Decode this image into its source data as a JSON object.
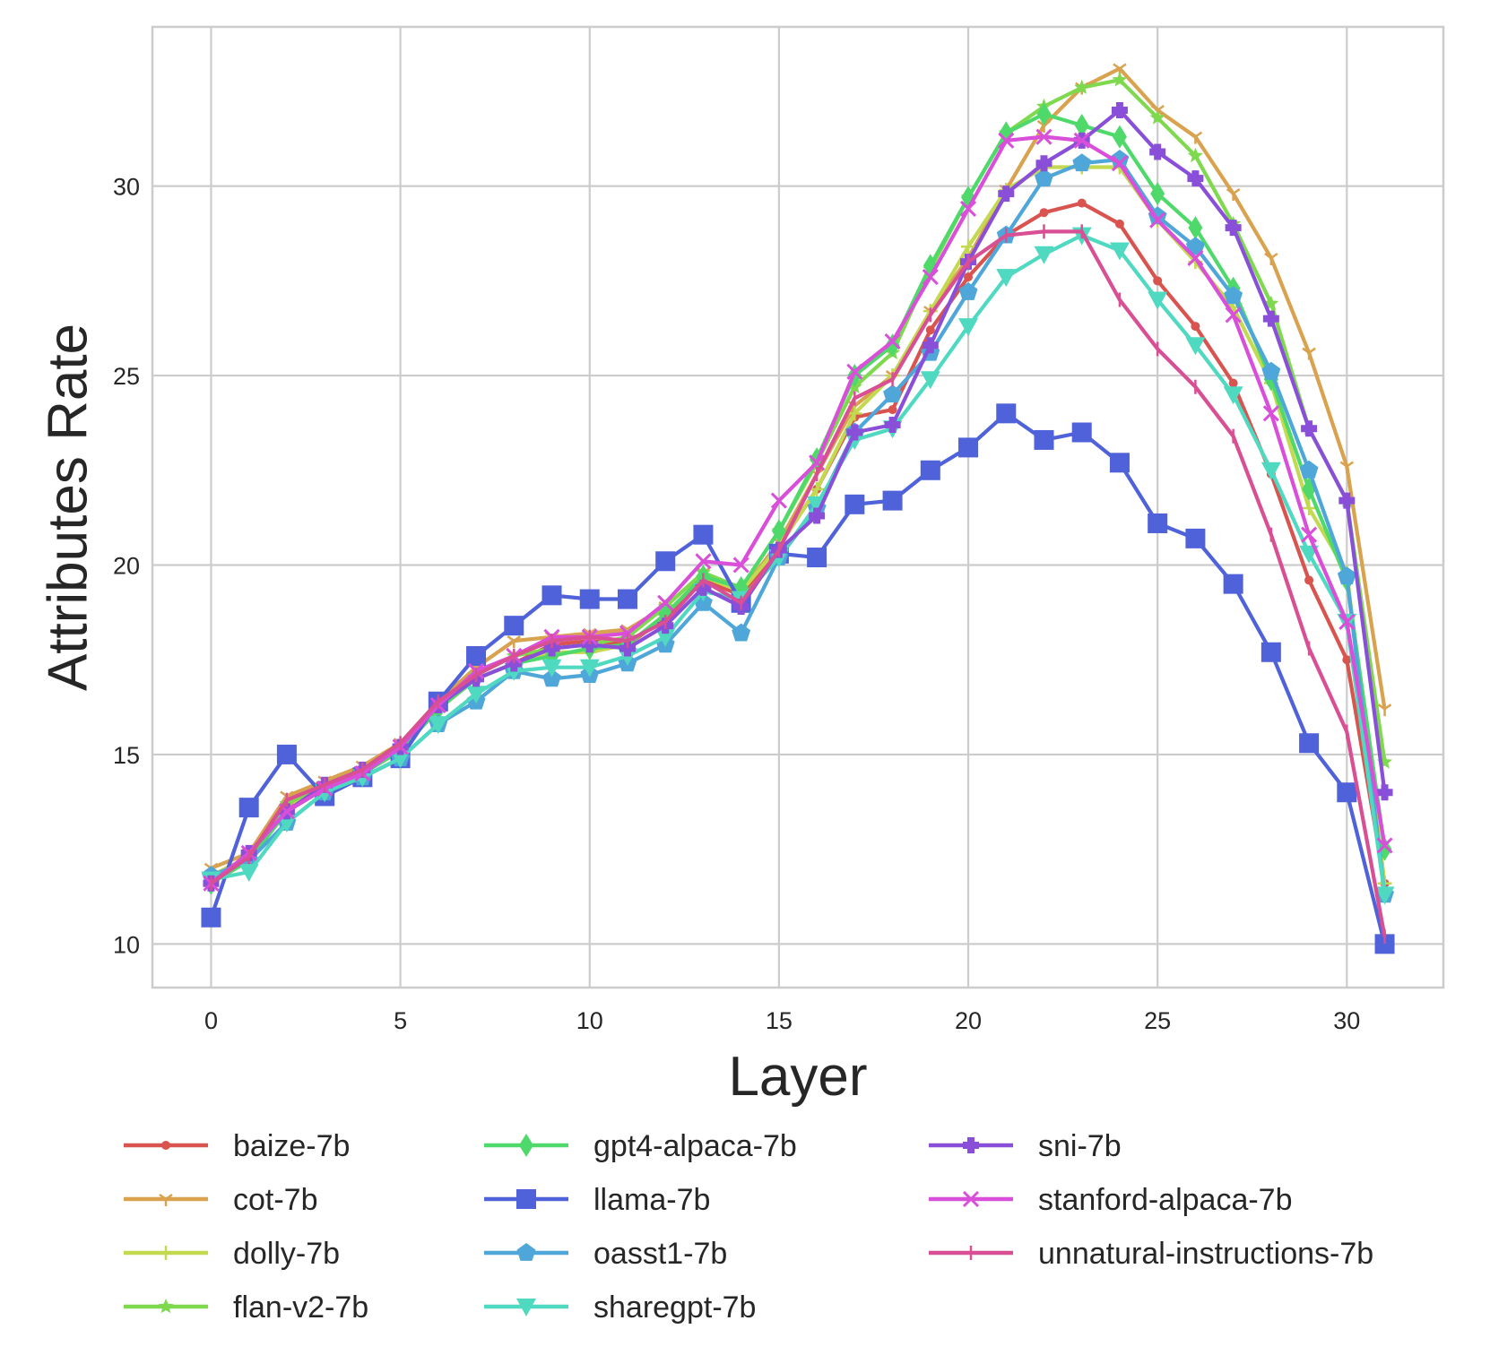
{
  "chart_data": {
    "type": "line",
    "title": "",
    "xlabel": "Layer",
    "ylabel": "Attributes Rate",
    "xlim": [
      -1.55,
      32.55
    ],
    "ylim": [
      8.85,
      34.2
    ],
    "xticks": [
      0,
      5,
      10,
      15,
      20,
      25,
      30
    ],
    "yticks": [
      10,
      15,
      20,
      25,
      30
    ],
    "grid": true,
    "legend_position": "bottom",
    "x": [
      0,
      1,
      2,
      3,
      4,
      5,
      6,
      7,
      8,
      9,
      10,
      11,
      12,
      13,
      14,
      15,
      16,
      17,
      18,
      19,
      20,
      21,
      22,
      23,
      24,
      25,
      26,
      27,
      28,
      29,
      30,
      31
    ],
    "series": [
      {
        "name": "baize-7b",
        "color": "#d9534f",
        "marker": "dot",
        "values": [
          11.6,
          12.4,
          13.6,
          14.1,
          14.5,
          15.1,
          16.2,
          17.0,
          17.4,
          17.9,
          18.0,
          17.9,
          18.6,
          19.6,
          19.2,
          20.5,
          22.0,
          23.9,
          24.1,
          26.2,
          27.6,
          28.7,
          29.3,
          29.55,
          29.0,
          27.5,
          26.3,
          24.8,
          22.4,
          19.6,
          17.5,
          11.6
        ]
      },
      {
        "name": "cot-7b",
        "color": "#d9a24f",
        "marker": "tri",
        "values": [
          12.0,
          12.4,
          13.9,
          14.3,
          14.7,
          15.3,
          16.4,
          17.3,
          18.0,
          18.1,
          18.2,
          18.3,
          18.9,
          19.8,
          19.3,
          20.6,
          22.4,
          24.2,
          25.0,
          26.7,
          28.1,
          29.9,
          31.6,
          32.6,
          33.1,
          32.0,
          31.3,
          29.8,
          28.1,
          25.6,
          22.6,
          16.2
        ]
      },
      {
        "name": "dolly-7b",
        "color": "#c3d94f",
        "marker": "plus",
        "values": [
          11.8,
          12.3,
          13.6,
          14.1,
          14.5,
          15.1,
          16.2,
          17.0,
          17.4,
          17.7,
          17.7,
          17.9,
          18.7,
          19.7,
          19.3,
          20.5,
          22.0,
          24.0,
          25.0,
          26.7,
          28.4,
          29.9,
          30.5,
          30.5,
          30.5,
          29.1,
          28.0,
          26.8,
          24.8,
          21.5,
          19.8,
          11.6
        ]
      },
      {
        "name": "flan-v2-7b",
        "color": "#7fd94f",
        "marker": "star",
        "values": [
          11.7,
          12.2,
          13.7,
          14.2,
          14.6,
          15.2,
          16.3,
          17.1,
          17.6,
          17.8,
          17.9,
          18.1,
          18.9,
          19.8,
          19.4,
          20.9,
          22.7,
          24.7,
          25.6,
          27.8,
          29.7,
          31.4,
          32.1,
          32.6,
          32.8,
          31.8,
          30.8,
          29.0,
          26.9,
          23.6,
          21.7,
          14.8
        ]
      },
      {
        "name": "gpt4-alpaca-7b",
        "color": "#4fd96a",
        "marker": "diamond",
        "values": [
          11.6,
          12.2,
          13.5,
          14.1,
          14.5,
          15.1,
          16.2,
          17.0,
          17.4,
          17.6,
          17.8,
          17.9,
          18.7,
          19.7,
          19.4,
          20.9,
          22.8,
          25.0,
          25.8,
          27.9,
          29.7,
          31.4,
          31.9,
          31.6,
          31.3,
          29.8,
          28.9,
          27.3,
          24.9,
          22.0,
          19.6,
          12.5
        ]
      },
      {
        "name": "llama-7b",
        "color": "#4f62d9",
        "marker": "square",
        "values": [
          10.7,
          13.6,
          15.0,
          13.9,
          14.4,
          14.9,
          16.4,
          17.6,
          18.4,
          19.2,
          19.1,
          19.1,
          20.1,
          20.8,
          19.0,
          20.3,
          20.2,
          21.6,
          21.7,
          22.5,
          23.1,
          24.0,
          23.3,
          23.5,
          22.7,
          21.1,
          20.7,
          19.5,
          17.7,
          15.3,
          14.0,
          10.0
        ]
      },
      {
        "name": "oasst1-7b",
        "color": "#4fa6d9",
        "marker": "pentagon",
        "values": [
          11.8,
          12.2,
          13.2,
          14.0,
          14.4,
          14.9,
          15.8,
          16.4,
          17.2,
          17.0,
          17.1,
          17.4,
          17.9,
          19.0,
          18.2,
          20.2,
          21.5,
          23.5,
          24.5,
          25.6,
          27.2,
          28.7,
          30.2,
          30.6,
          30.7,
          29.2,
          28.4,
          27.1,
          25.1,
          22.5,
          19.7,
          11.3
        ]
      },
      {
        "name": "sharegpt-7b",
        "color": "#4fd9c0",
        "marker": "tri_down",
        "values": [
          11.7,
          11.9,
          13.2,
          14.0,
          14.4,
          14.9,
          15.8,
          16.6,
          17.2,
          17.3,
          17.3,
          17.6,
          18.1,
          19.3,
          19.1,
          20.2,
          21.6,
          23.3,
          23.6,
          24.9,
          26.3,
          27.6,
          28.2,
          28.7,
          28.3,
          27.0,
          25.8,
          24.5,
          22.5,
          20.3,
          18.5,
          11.3
        ]
      },
      {
        "name": "sni-7b",
        "color": "#8a4fd9",
        "marker": "plus_filled",
        "values": [
          11.6,
          12.4,
          13.5,
          14.2,
          14.6,
          15.2,
          16.3,
          17.0,
          17.4,
          17.8,
          17.9,
          17.8,
          18.4,
          19.4,
          18.9,
          20.4,
          21.3,
          23.5,
          23.7,
          25.8,
          28.0,
          29.8,
          30.6,
          31.2,
          32.0,
          30.9,
          30.2,
          28.9,
          26.5,
          23.6,
          21.7,
          14.0
        ]
      },
      {
        "name": "stanford-alpaca-7b",
        "color": "#d94fd9",
        "marker": "x",
        "values": [
          11.6,
          12.4,
          13.5,
          14.1,
          14.5,
          15.2,
          16.3,
          17.2,
          17.6,
          18.1,
          18.1,
          18.2,
          19.0,
          20.1,
          20.0,
          21.7,
          22.7,
          25.1,
          25.9,
          27.6,
          29.4,
          31.2,
          31.3,
          31.2,
          30.6,
          29.1,
          28.1,
          26.6,
          24.0,
          20.8,
          18.5,
          12.6
        ]
      },
      {
        "name": "unnatural-instructions-7b",
        "color": "#d94f94",
        "marker": "vline",
        "values": [
          11.6,
          12.3,
          13.8,
          14.2,
          14.6,
          15.3,
          16.4,
          17.1,
          17.6,
          18.0,
          18.1,
          18.0,
          18.5,
          19.6,
          19.0,
          20.4,
          22.4,
          24.4,
          24.9,
          26.6,
          28.0,
          28.7,
          28.8,
          28.8,
          27.0,
          25.7,
          24.7,
          23.4,
          20.8,
          17.8,
          15.6,
          10.2
        ]
      }
    ]
  }
}
